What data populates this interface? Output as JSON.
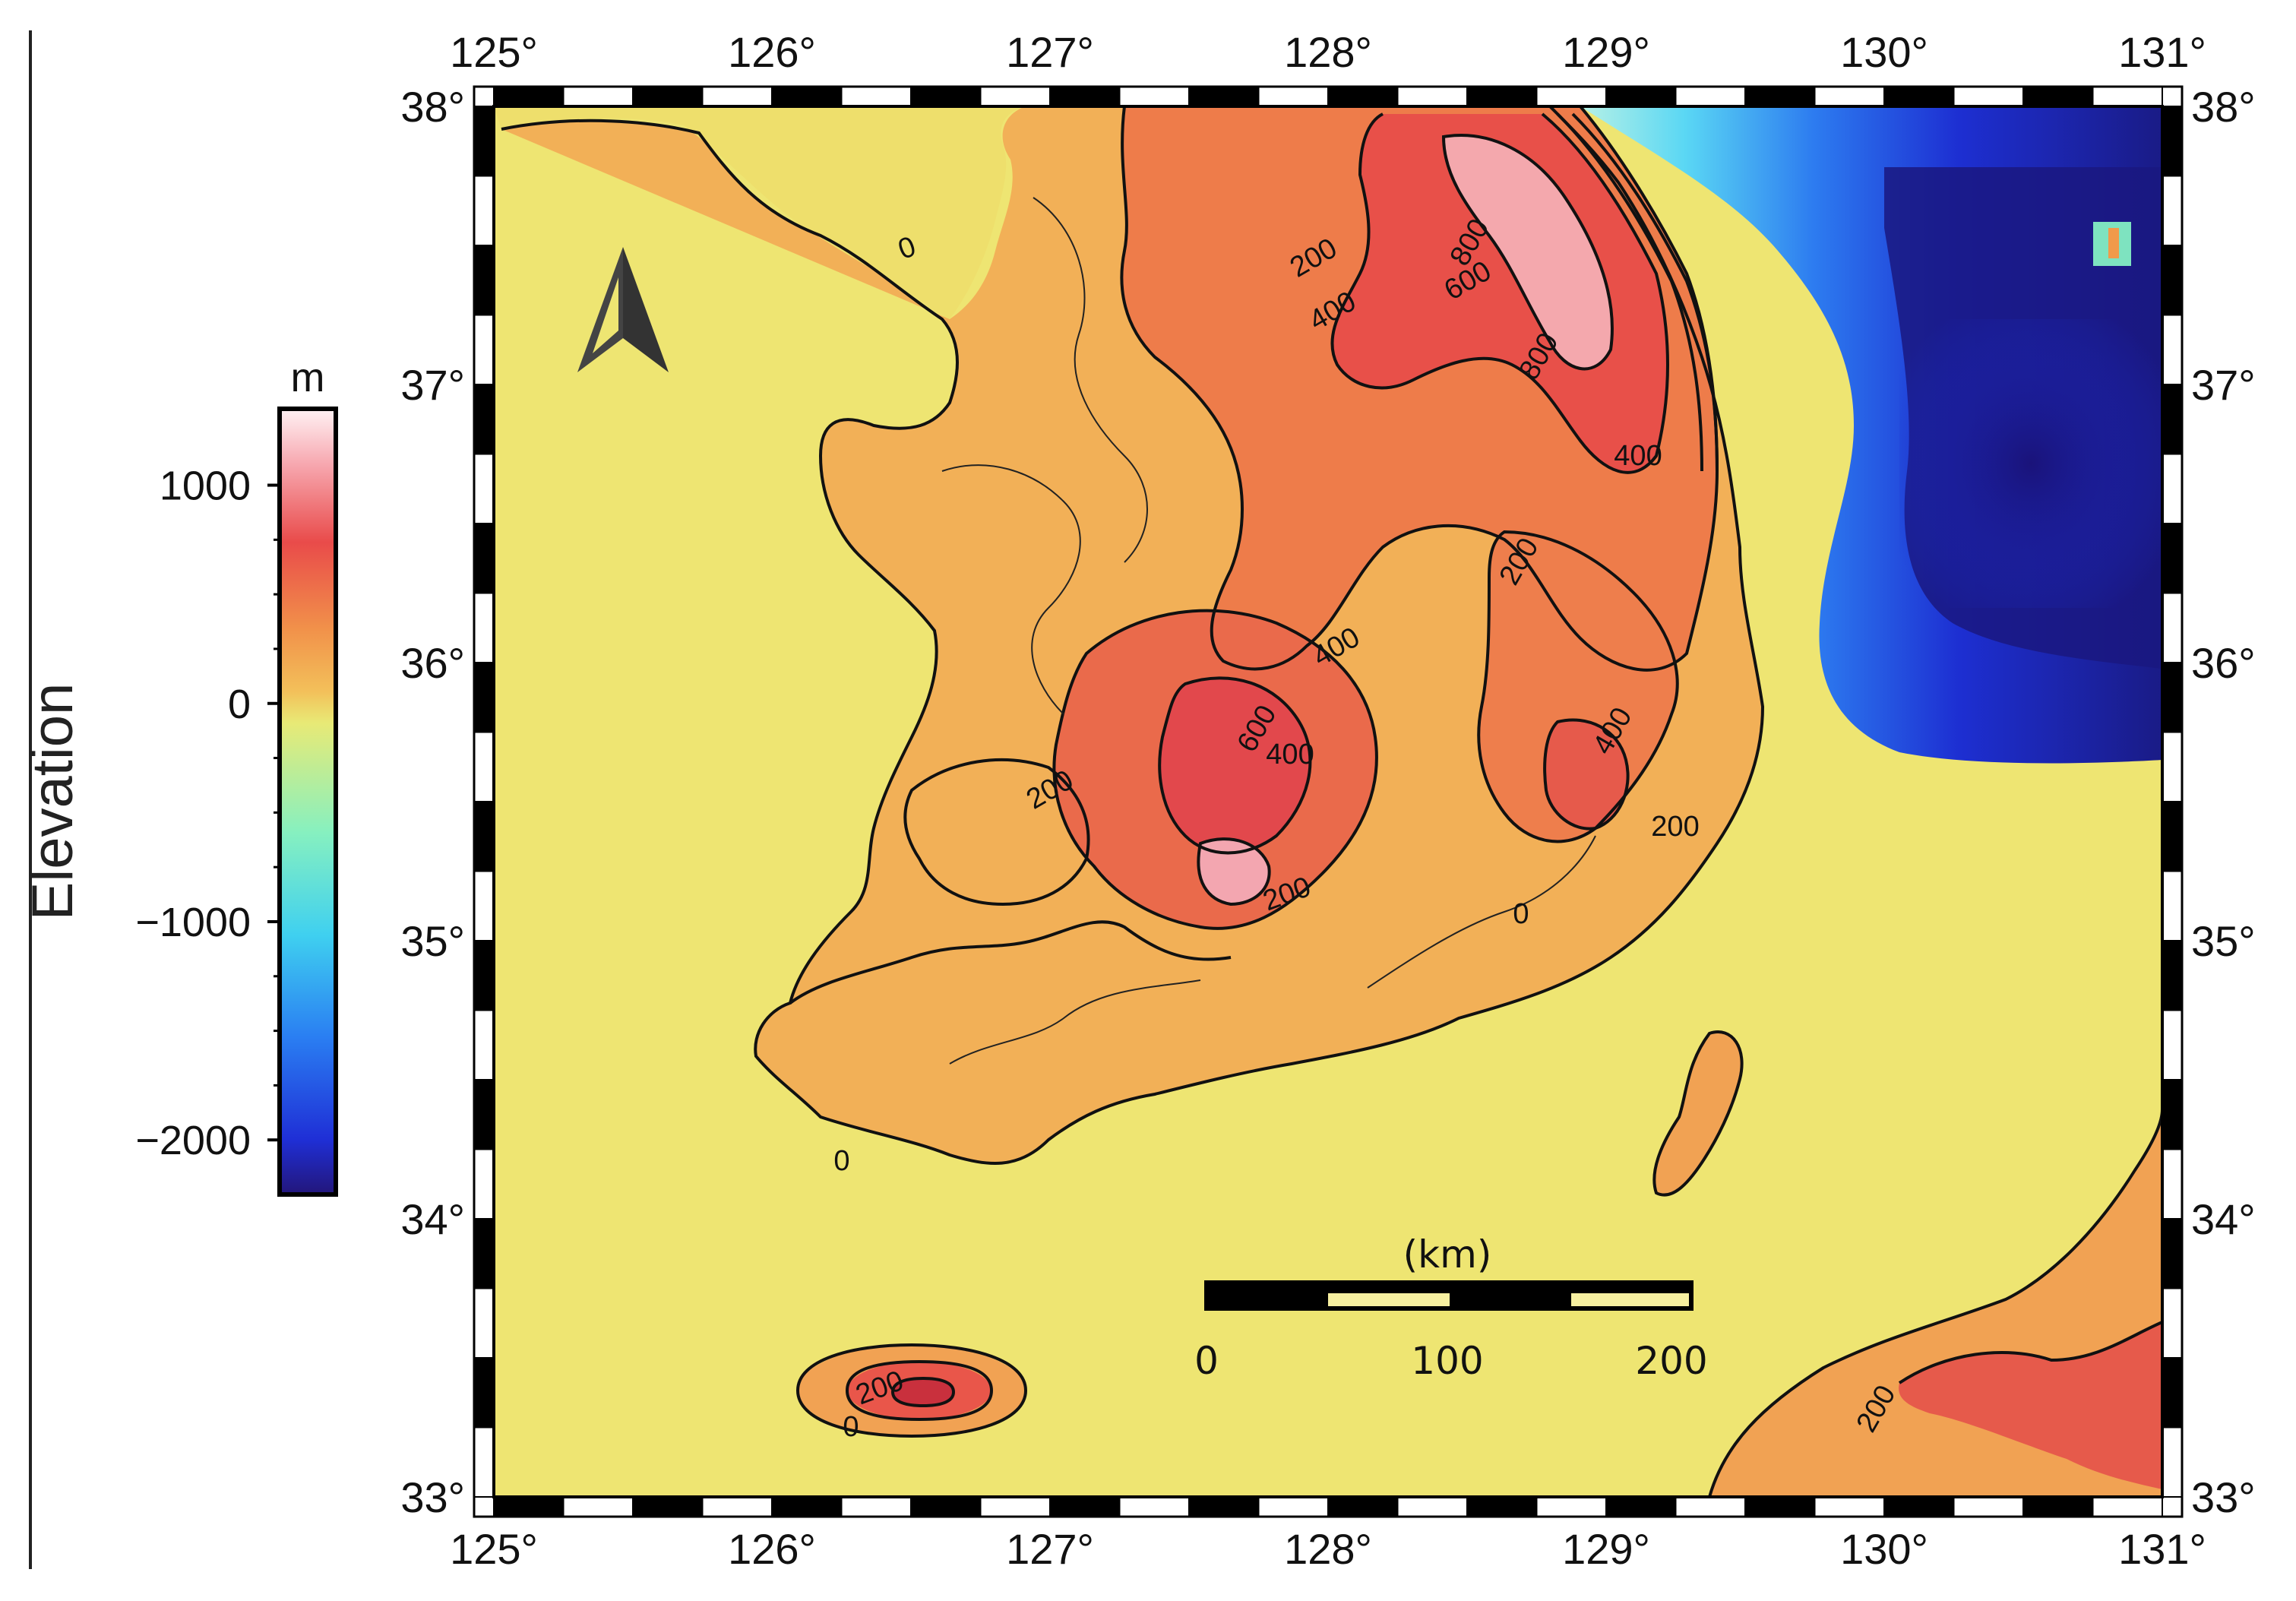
{
  "figure": {
    "colorbar": {
      "title": "Elevation",
      "unit": "m",
      "ticks": [
        "1000",
        "0",
        "−1000",
        "−2000"
      ],
      "tick_values": [
        1000,
        0,
        -1000,
        -2000
      ],
      "range": [
        -2250,
        1350
      ],
      "colormap": [
        "#23167a",
        "#1f2fd6",
        "#2a7ef2",
        "#3fd0f0",
        "#86f0c0",
        "#e8ea76",
        "#f3c05a",
        "#f1914a",
        "#e94b4a",
        "#f7a8b0",
        "#fff2f4"
      ]
    },
    "map": {
      "lon_range": [
        125,
        131
      ],
      "lat_range": [
        33,
        38
      ],
      "lon_ticks": [
        "125°",
        "126°",
        "127°",
        "128°",
        "129°",
        "130°",
        "131°"
      ],
      "lat_ticks": [
        "38°",
        "37°",
        "36°",
        "35°",
        "34°",
        "33°"
      ],
      "contour_labels": [
        "0",
        "0",
        "0",
        "0",
        "200",
        "200",
        "200",
        "200",
        "200",
        "200",
        "200",
        "400",
        "400",
        "400",
        "400",
        "400",
        "600",
        "600",
        "800",
        "800"
      ],
      "north_arrow": "north-arrow-icon"
    },
    "scale_bar": {
      "unit": "(km)",
      "labels": [
        "0",
        "100",
        "200"
      ]
    }
  }
}
